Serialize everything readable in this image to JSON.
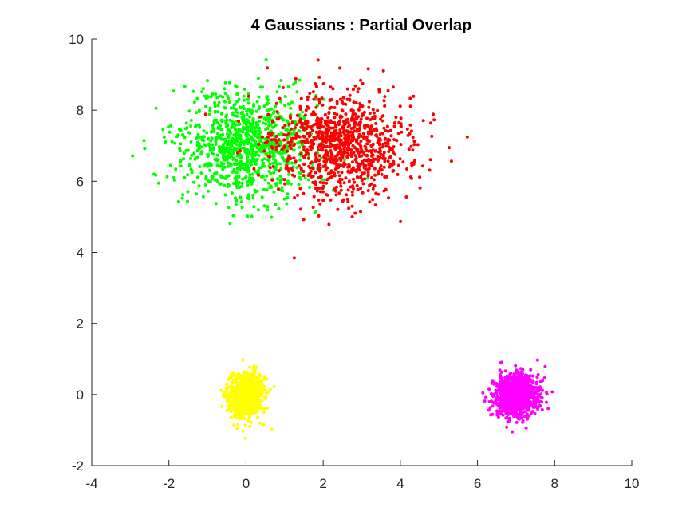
{
  "chart_data": {
    "type": "scatter",
    "title": "4 Gaussians : Partial Overlap",
    "xlabel": "",
    "ylabel": "",
    "xlim": [
      -4,
      10
    ],
    "ylim": [
      -2,
      10
    ],
    "x_ticks": [
      -4,
      -2,
      0,
      2,
      4,
      6,
      8,
      10
    ],
    "y_ticks": [
      -2,
      0,
      2,
      4,
      6,
      8,
      10
    ],
    "x_tick_labels": [
      "-4",
      "-2",
      "0",
      "2",
      "4",
      "6",
      "8",
      "10"
    ],
    "y_tick_labels": [
      "-2",
      "0",
      "2",
      "4",
      "6",
      "8",
      "10"
    ],
    "grid": false,
    "legend": "none",
    "series": [
      {
        "color": "#00ff00",
        "mean": [
          0,
          7
        ],
        "std": [
          0.9,
          0.75
        ],
        "count": 1000
      },
      {
        "color": "#ff0000",
        "mean": [
          2.4,
          7
        ],
        "std": [
          0.9,
          0.75
        ],
        "count": 1000
      },
      {
        "color": "#ffff00",
        "mean": [
          0,
          0
        ],
        "std": [
          0.22,
          0.3
        ],
        "count": 1000
      },
      {
        "color": "#ff00ff",
        "mean": [
          7,
          0
        ],
        "std": [
          0.28,
          0.3
        ],
        "count": 1000
      }
    ]
  }
}
